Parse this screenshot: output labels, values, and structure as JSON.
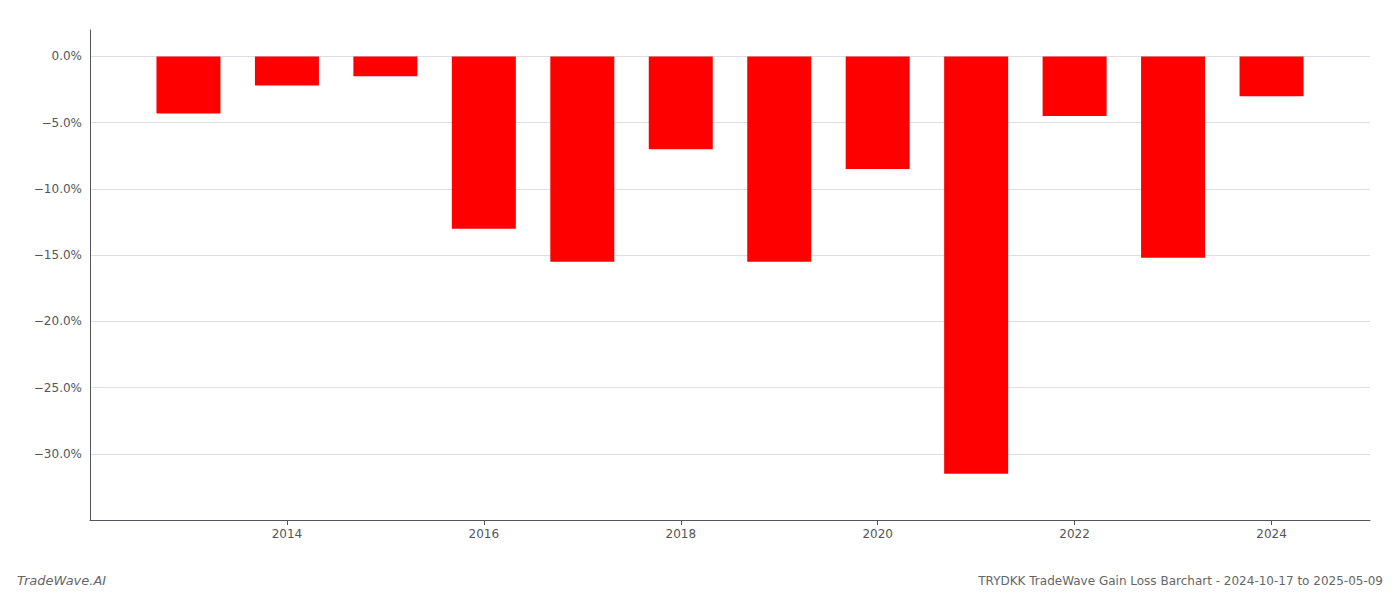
{
  "chart_data": {
    "type": "bar",
    "title": "TRYDKK TradeWave Gain Loss Barchart - 2024-10-17 to 2025-05-09",
    "annotations": [
      "TradeWave.AI"
    ],
    "x": [
      2013,
      2014,
      2015,
      2016,
      2017,
      2018,
      2019,
      2020,
      2021,
      2022,
      2023,
      2024
    ],
    "values": [
      -4.3,
      -2.2,
      -1.5,
      -13.0,
      -15.5,
      -7.0,
      -15.5,
      -8.5,
      -31.5,
      -4.5,
      -15.2,
      -3.0
    ],
    "color": "#ff0000",
    "xlim": [
      2012,
      2025
    ],
    "xticks": [
      2014,
      2016,
      2018,
      2020,
      2022,
      2024
    ],
    "ylim": [
      -35,
      2
    ],
    "yticks": [
      {
        "value": 0,
        "label": "0.0%"
      },
      {
        "value": -5,
        "label": "−5.0%"
      },
      {
        "value": -10,
        "label": "−10.0%"
      },
      {
        "value": -15,
        "label": "−15.0%"
      },
      {
        "value": -20,
        "label": "−20.0%"
      },
      {
        "value": -25,
        "label": "−25.0%"
      },
      {
        "value": -30,
        "label": "−30.0%"
      }
    ],
    "grid": true
  }
}
